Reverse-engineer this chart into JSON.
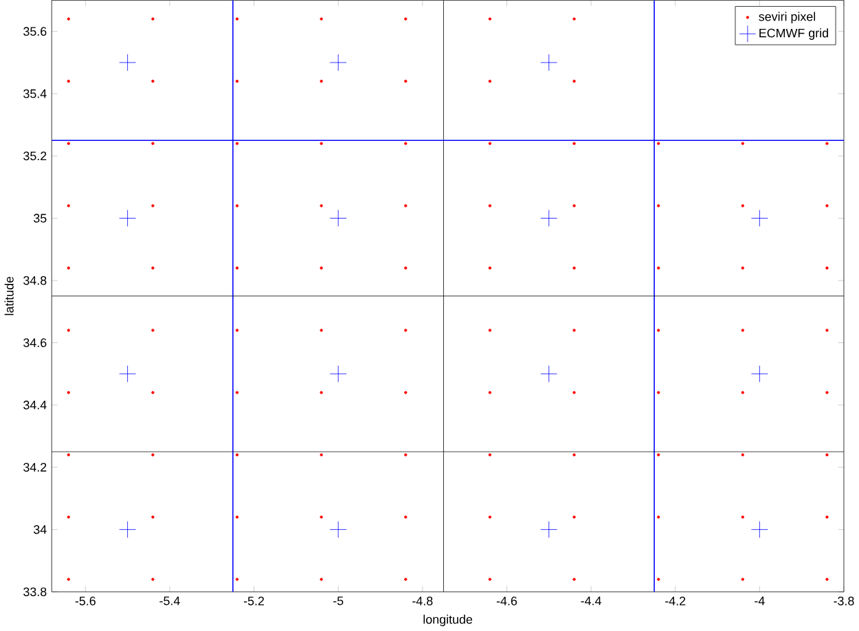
{
  "chart_data": {
    "type": "scatter",
    "xlabel": "longitude",
    "ylabel": "latitude",
    "xlim": [
      -5.68,
      -3.8
    ],
    "ylim": [
      33.8,
      35.7
    ],
    "xticks": [
      -5.6,
      -5.4,
      -5.2,
      -5,
      -4.8,
      -4.6,
      -4.4,
      -4.2,
      -4,
      -3.8
    ],
    "yticks": [
      33.8,
      34,
      34.2,
      34.4,
      34.6,
      34.8,
      35,
      35.2,
      35.4,
      35.6
    ],
    "grid": false,
    "legend": "top right",
    "series": [
      {
        "name": "seviri pixel",
        "color": "#ff0000",
        "marker": "circle",
        "x": [
          -5.64,
          -5.44,
          -5.24,
          -5.04,
          -4.84,
          -4.64,
          -4.44,
          -4.24,
          -4.04,
          -3.84,
          -5.64,
          -5.44,
          -5.24,
          -5.04,
          -4.84,
          -4.64,
          -4.44,
          -4.24,
          -4.04,
          -3.84,
          -5.64,
          -5.44,
          -5.24,
          -5.04,
          -4.84,
          -4.64,
          -4.44,
          -4.24,
          -4.04,
          -3.84,
          -5.64,
          -5.44,
          -5.24,
          -5.04,
          -4.84,
          -4.64,
          -4.44,
          -4.24,
          -4.04,
          -3.84,
          -5.64,
          -5.44,
          -5.24,
          -5.04,
          -4.84,
          -4.64,
          -4.44,
          -4.24,
          -4.04,
          -3.84,
          -5.64,
          -5.44,
          -5.24,
          -5.04,
          -4.84,
          -4.64,
          -4.44,
          -4.24,
          -4.04,
          -3.84,
          -5.64,
          -5.44,
          -5.24,
          -5.04,
          -4.84,
          -4.64,
          -4.44,
          -4.24,
          -4.04,
          -3.84,
          -5.64,
          -5.44,
          -5.24,
          -5.04,
          -4.84,
          -4.64,
          -4.44,
          -4.24,
          -4.04,
          -3.84,
          -5.64,
          -5.44,
          -5.24,
          -5.04,
          -4.84,
          -4.64,
          -4.44,
          -5.64,
          -5.44,
          -5.24,
          -5.04,
          -4.84,
          -4.64,
          -4.44
        ],
        "values": [
          33.84,
          33.84,
          33.84,
          33.84,
          33.84,
          33.84,
          33.84,
          33.84,
          33.84,
          33.84,
          34.04,
          34.04,
          34.04,
          34.04,
          34.04,
          34.04,
          34.04,
          34.04,
          34.04,
          34.04,
          34.24,
          34.24,
          34.24,
          34.24,
          34.24,
          34.24,
          34.24,
          34.24,
          34.24,
          34.24,
          34.44,
          34.44,
          34.44,
          34.44,
          34.44,
          34.44,
          34.44,
          34.44,
          34.44,
          34.44,
          34.64,
          34.64,
          34.64,
          34.64,
          34.64,
          34.64,
          34.64,
          34.64,
          34.64,
          34.64,
          34.84,
          34.84,
          34.84,
          34.84,
          34.84,
          34.84,
          34.84,
          34.84,
          34.84,
          34.84,
          35.04,
          35.04,
          35.04,
          35.04,
          35.04,
          35.04,
          35.04,
          35.04,
          35.04,
          35.04,
          35.24,
          35.24,
          35.24,
          35.24,
          35.24,
          35.24,
          35.24,
          35.24,
          35.24,
          35.24,
          35.44,
          35.44,
          35.44,
          35.44,
          35.44,
          35.44,
          35.44,
          35.64,
          35.64,
          35.64,
          35.64,
          35.64,
          35.64,
          35.64
        ]
      },
      {
        "name": "ECMWF grid",
        "color": "#0000ff",
        "marker": "cross",
        "x": [
          -5.5,
          -5,
          -4.5,
          -4,
          -5.5,
          -5,
          -4.5,
          -4,
          -5.5,
          -5,
          -4.5,
          -4,
          -5.5,
          -5,
          -4.5
        ],
        "values": [
          34,
          34,
          34,
          34,
          34.5,
          34.5,
          34.5,
          34.5,
          35,
          35,
          35,
          35,
          35.5,
          35.5,
          35.5
        ]
      }
    ],
    "ref_lines": [
      {
        "axis": "x",
        "value": -5.25,
        "color": "#0000ff"
      },
      {
        "axis": "x",
        "value": -4.75,
        "color": "#000000"
      },
      {
        "axis": "x",
        "value": -4.25,
        "color": "#0000ff"
      },
      {
        "axis": "y",
        "value": 35.25,
        "color": "#0000ff"
      },
      {
        "axis": "y",
        "value": 34.75,
        "color": "#000000"
      },
      {
        "axis": "y",
        "value": 34.25,
        "color": "#000000"
      }
    ]
  }
}
